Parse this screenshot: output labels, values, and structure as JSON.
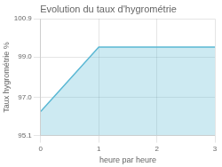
{
  "chart_data": {
    "type": "area",
    "title": "Evolution du taux d'hygrométrie",
    "xlabel": "heure par heure",
    "ylabel": "Taux hygrométrie %",
    "x": [
      0,
      1,
      3
    ],
    "values": [
      96.3,
      99.5,
      99.5
    ],
    "color": "#5bb8d4",
    "xlim": [
      0,
      3
    ],
    "ylim": [
      95.1,
      100.9
    ],
    "xticks": [
      0,
      1,
      2,
      3
    ],
    "yticks": [
      95.1,
      {
        "value": 97.0,
        "label": "97.0"
      },
      {
        "value": 99.0,
        "label": "99.0"
      },
      100.9
    ],
    "grid": true
  }
}
